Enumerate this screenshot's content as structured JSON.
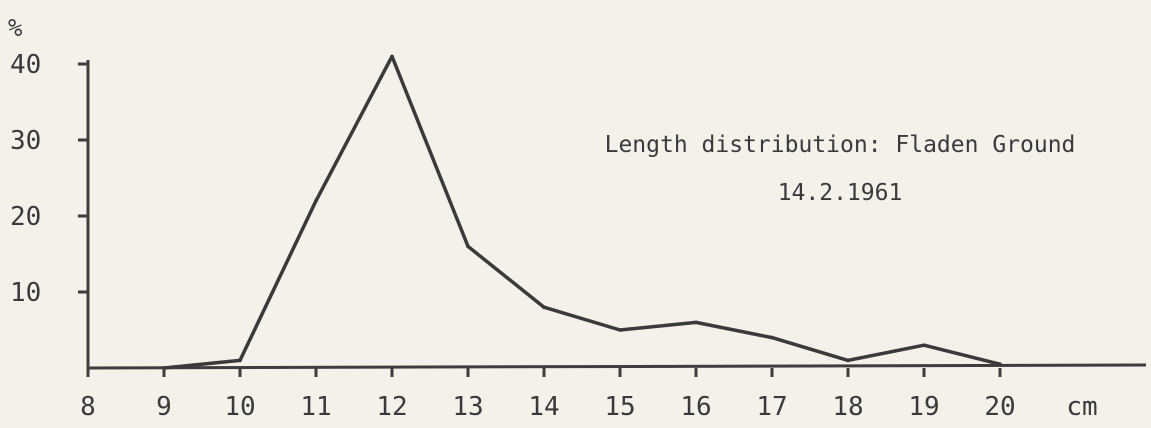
{
  "chart_data": {
    "type": "line",
    "title": "Length distribution: Fladen Ground",
    "subtitle": "14.2.1961",
    "ylabel": "%",
    "x_unit_label": "cm",
    "xlim": [
      8,
      22
    ],
    "ylim": [
      0,
      40
    ],
    "x_ticks": [
      "8",
      "9",
      "10",
      "11",
      "12",
      "13",
      "14",
      "15",
      "16",
      "17",
      "18",
      "19",
      "20"
    ],
    "y_ticks": [
      "10",
      "20",
      "30",
      "40"
    ],
    "x": [
      9,
      10,
      11,
      12,
      13,
      14,
      15,
      16,
      17,
      18,
      19,
      20
    ],
    "series": [
      {
        "values": [
          0,
          1,
          22,
          41,
          16,
          8,
          5,
          6,
          4,
          1,
          3,
          0.5
        ]
      }
    ],
    "grid": false,
    "legend": "none"
  }
}
